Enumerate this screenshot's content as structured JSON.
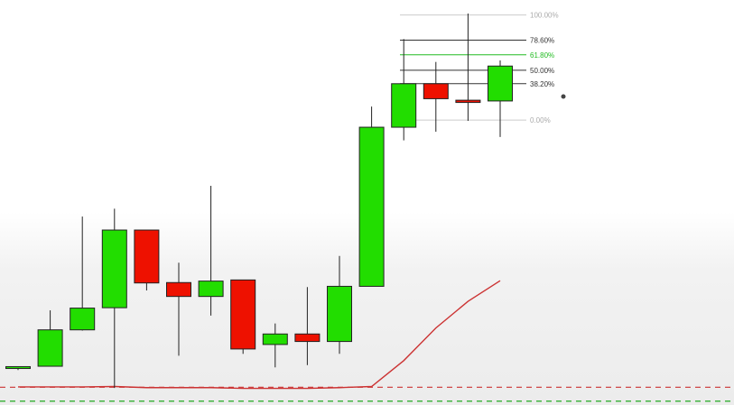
{
  "chart_data": {
    "type": "candlestick",
    "grid": false,
    "legend": "none",
    "ylim": [
      0,
      100
    ],
    "candles": [
      {
        "open": 5.4,
        "high": 5.9,
        "low": 5.0,
        "close": 5.9,
        "color": "green"
      },
      {
        "open": 6.0,
        "high": 20.9,
        "low": 6.0,
        "close": 15.7,
        "color": "green"
      },
      {
        "open": 15.7,
        "high": 45.9,
        "low": 15.5,
        "close": 21.5,
        "color": "green"
      },
      {
        "open": 21.6,
        "high": 48.0,
        "low": 0.2,
        "close": 42.3,
        "color": "green"
      },
      {
        "open": 42.3,
        "high": 42.3,
        "low": 26.2,
        "close": 28.2,
        "color": "red"
      },
      {
        "open": 28.3,
        "high": 33.6,
        "low": 8.8,
        "close": 24.6,
        "color": "red"
      },
      {
        "open": 24.6,
        "high": 54.1,
        "low": 19.5,
        "close": 28.7,
        "color": "green"
      },
      {
        "open": 29.0,
        "high": 29.0,
        "low": 9.3,
        "close": 10.6,
        "color": "red"
      },
      {
        "open": 11.8,
        "high": 17.4,
        "low": 5.7,
        "close": 14.6,
        "color": "green"
      },
      {
        "open": 14.6,
        "high": 27.1,
        "low": 6.3,
        "close": 12.6,
        "color": "red"
      },
      {
        "open": 12.6,
        "high": 35.4,
        "low": 9.3,
        "close": 27.3,
        "color": "green"
      },
      {
        "open": 27.3,
        "high": 75.2,
        "low": 27.3,
        "close": 69.7,
        "color": "green"
      },
      {
        "open": 69.7,
        "high": 93.2,
        "low": 66.2,
        "close": 81.3,
        "color": "green"
      },
      {
        "open": 81.3,
        "high": 87.1,
        "low": 68.5,
        "close": 77.3,
        "color": "red"
      },
      {
        "open": 76.9,
        "high": 100.0,
        "low": 71.4,
        "close": 76.3,
        "color": "red"
      },
      {
        "open": 76.7,
        "high": 87.5,
        "low": 67.1,
        "close": 86.0,
        "color": "green"
      }
    ],
    "fib_levels": [
      {
        "label": "100.00%",
        "value": 99.6,
        "color": "#cccccc",
        "label_color": "#aaaaaa"
      },
      {
        "label": "78.60%",
        "value": 92.9,
        "color": "#333333",
        "label_color": "#333333"
      },
      {
        "label": "61.80%",
        "value": 89.0,
        "color": "#22bb22",
        "label_color": "#22bb22"
      },
      {
        "label": "50.00%",
        "value": 84.9,
        "color": "#333333",
        "label_color": "#333333"
      },
      {
        "label": "38.20%",
        "value": 81.3,
        "color": "#333333",
        "label_color": "#333333"
      },
      {
        "label": "0.00%",
        "value": 71.6,
        "color": "#cccccc",
        "label_color": "#aaaaaa"
      }
    ],
    "indicator_line": {
      "color": "#cc3333",
      "points": [
        [
          0,
          0.5
        ],
        [
          1,
          0.5
        ],
        [
          2,
          0.5
        ],
        [
          3,
          0.6
        ],
        [
          4,
          0.3
        ],
        [
          5,
          0.3
        ],
        [
          6,
          0.3
        ],
        [
          7,
          0.1
        ],
        [
          8,
          0.1
        ],
        [
          9,
          0.1
        ],
        [
          10,
          0.3
        ],
        [
          11,
          0.6
        ],
        [
          11.0,
          0.6
        ],
        [
          12,
          7.5
        ],
        [
          13,
          16.2
        ],
        [
          14,
          23.3
        ],
        [
          15,
          28.8
        ]
      ]
    },
    "baseline_line": {
      "color": "#cc3333",
      "value": 0.4
    },
    "lower_line": {
      "color": "#22aa22",
      "value": -3.3
    }
  },
  "colors": {
    "up": "#22dd00",
    "down": "#ee1100",
    "outline": "#222222",
    "wick": "#222222",
    "cursor": "#444444"
  }
}
